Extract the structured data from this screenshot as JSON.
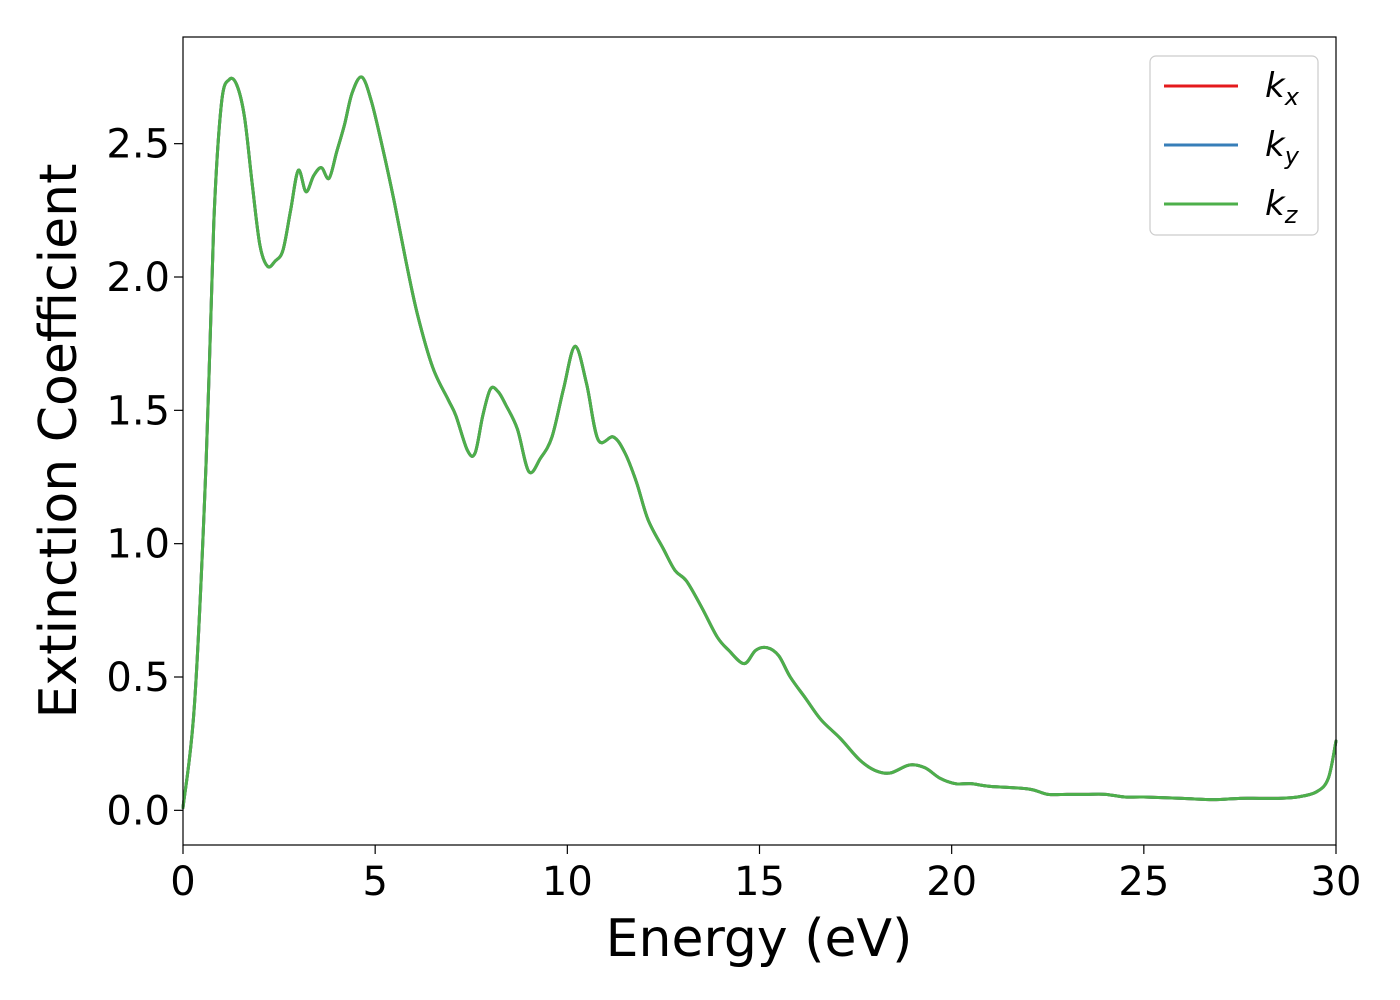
{
  "chart_data": {
    "type": "line",
    "title": "",
    "xlabel": "Energy (eV)",
    "ylabel": "Extinction Coefficient",
    "xlim": [
      0,
      30
    ],
    "ylim": [
      -0.13,
      2.9
    ],
    "xticks": [
      0,
      5,
      10,
      15,
      20,
      25,
      30
    ],
    "xtick_labels": [
      "0",
      "5",
      "10",
      "15",
      "20",
      "25",
      "30"
    ],
    "yticks": [
      0.0,
      0.5,
      1.0,
      1.5,
      2.0,
      2.5
    ],
    "ytick_labels": [
      "0.0",
      "0.5",
      "1.0",
      "1.5",
      "2.0",
      "2.5"
    ],
    "grid": false,
    "legend_position": "top-right",
    "series": [
      {
        "name": "k",
        "subscript": "x",
        "color": "#e41a1c",
        "x": [
          0,
          0.3,
          0.6,
          0.8,
          1.0,
          1.2,
          1.4,
          1.6,
          1.8,
          2.0,
          2.2,
          2.4,
          2.6,
          2.8,
          3.0,
          3.2,
          3.4,
          3.6,
          3.8,
          4.0,
          4.2,
          4.4,
          4.65,
          4.9,
          5.2,
          5.5,
          5.8,
          6.1,
          6.5,
          6.9,
          7.1,
          7.4,
          7.6,
          7.8,
          8.0,
          8.2,
          8.4,
          8.7,
          9.0,
          9.3,
          9.6,
          9.9,
          10.2,
          10.5,
          10.8,
          11.2,
          11.5,
          11.8,
          12.1,
          12.5,
          12.8,
          13.1,
          13.5,
          13.9,
          14.2,
          14.6,
          14.9,
          15.2,
          15.5,
          15.8,
          16.2,
          16.6,
          17.1,
          17.6,
          18.0,
          18.4,
          18.9,
          19.3,
          19.7,
          20.1,
          20.5,
          21.0,
          22.0,
          22.5,
          23.0,
          23.5,
          24.0,
          24.5,
          25.0,
          26.0,
          26.8,
          27.5,
          28.0,
          28.5,
          29.0,
          29.5,
          29.8,
          30.0
        ],
        "y": [
          0.01,
          0.4,
          1.3,
          2.2,
          2.65,
          2.74,
          2.72,
          2.6,
          2.35,
          2.12,
          2.04,
          2.06,
          2.1,
          2.25,
          2.4,
          2.32,
          2.38,
          2.41,
          2.37,
          2.47,
          2.57,
          2.69,
          2.75,
          2.66,
          2.48,
          2.28,
          2.06,
          1.86,
          1.66,
          1.54,
          1.48,
          1.35,
          1.34,
          1.48,
          1.58,
          1.57,
          1.52,
          1.43,
          1.27,
          1.32,
          1.4,
          1.58,
          1.74,
          1.6,
          1.39,
          1.4,
          1.34,
          1.23,
          1.09,
          0.98,
          0.9,
          0.86,
          0.76,
          0.65,
          0.6,
          0.55,
          0.6,
          0.61,
          0.58,
          0.5,
          0.42,
          0.34,
          0.27,
          0.19,
          0.15,
          0.14,
          0.17,
          0.16,
          0.12,
          0.1,
          0.1,
          0.09,
          0.08,
          0.06,
          0.06,
          0.06,
          0.06,
          0.05,
          0.05,
          0.045,
          0.04,
          0.045,
          0.045,
          0.045,
          0.05,
          0.07,
          0.12,
          0.26
        ]
      },
      {
        "name": "k",
        "subscript": "y",
        "color": "#377eb8",
        "x": [
          0,
          0.3,
          0.6,
          0.8,
          1.0,
          1.2,
          1.4,
          1.6,
          1.8,
          2.0,
          2.2,
          2.4,
          2.6,
          2.8,
          3.0,
          3.2,
          3.4,
          3.6,
          3.8,
          4.0,
          4.2,
          4.4,
          4.65,
          4.9,
          5.2,
          5.5,
          5.8,
          6.1,
          6.5,
          6.9,
          7.1,
          7.4,
          7.6,
          7.8,
          8.0,
          8.2,
          8.4,
          8.7,
          9.0,
          9.3,
          9.6,
          9.9,
          10.2,
          10.5,
          10.8,
          11.2,
          11.5,
          11.8,
          12.1,
          12.5,
          12.8,
          13.1,
          13.5,
          13.9,
          14.2,
          14.6,
          14.9,
          15.2,
          15.5,
          15.8,
          16.2,
          16.6,
          17.1,
          17.6,
          18.0,
          18.4,
          18.9,
          19.3,
          19.7,
          20.1,
          20.5,
          21.0,
          22.0,
          22.5,
          23.0,
          23.5,
          24.0,
          24.5,
          25.0,
          26.0,
          26.8,
          27.5,
          28.0,
          28.5,
          29.0,
          29.5,
          29.8,
          30.0
        ],
        "y": [
          0.01,
          0.4,
          1.3,
          2.2,
          2.65,
          2.74,
          2.72,
          2.6,
          2.35,
          2.12,
          2.04,
          2.06,
          2.1,
          2.25,
          2.4,
          2.32,
          2.38,
          2.41,
          2.37,
          2.47,
          2.57,
          2.69,
          2.75,
          2.66,
          2.48,
          2.28,
          2.06,
          1.86,
          1.66,
          1.54,
          1.48,
          1.35,
          1.34,
          1.48,
          1.58,
          1.57,
          1.52,
          1.43,
          1.27,
          1.32,
          1.4,
          1.58,
          1.74,
          1.6,
          1.39,
          1.4,
          1.34,
          1.23,
          1.09,
          0.98,
          0.9,
          0.86,
          0.76,
          0.65,
          0.6,
          0.55,
          0.6,
          0.61,
          0.58,
          0.5,
          0.42,
          0.34,
          0.27,
          0.19,
          0.15,
          0.14,
          0.17,
          0.16,
          0.12,
          0.1,
          0.1,
          0.09,
          0.08,
          0.06,
          0.06,
          0.06,
          0.06,
          0.05,
          0.05,
          0.045,
          0.04,
          0.045,
          0.045,
          0.045,
          0.05,
          0.07,
          0.12,
          0.26
        ]
      },
      {
        "name": "k",
        "subscript": "z",
        "color": "#4daf4a",
        "x": [
          0,
          0.3,
          0.6,
          0.8,
          1.0,
          1.2,
          1.4,
          1.6,
          1.8,
          2.0,
          2.2,
          2.4,
          2.6,
          2.8,
          3.0,
          3.2,
          3.4,
          3.6,
          3.8,
          4.0,
          4.2,
          4.4,
          4.65,
          4.9,
          5.2,
          5.5,
          5.8,
          6.1,
          6.5,
          6.9,
          7.1,
          7.4,
          7.6,
          7.8,
          8.0,
          8.2,
          8.4,
          8.7,
          9.0,
          9.3,
          9.6,
          9.9,
          10.2,
          10.5,
          10.8,
          11.2,
          11.5,
          11.8,
          12.1,
          12.5,
          12.8,
          13.1,
          13.5,
          13.9,
          14.2,
          14.6,
          14.9,
          15.2,
          15.5,
          15.8,
          16.2,
          16.6,
          17.1,
          17.6,
          18.0,
          18.4,
          18.9,
          19.3,
          19.7,
          20.1,
          20.5,
          21.0,
          22.0,
          22.5,
          23.0,
          23.5,
          24.0,
          24.5,
          25.0,
          26.0,
          26.8,
          27.5,
          28.0,
          28.5,
          29.0,
          29.5,
          29.8,
          30.0
        ],
        "y": [
          0.01,
          0.4,
          1.3,
          2.2,
          2.65,
          2.74,
          2.72,
          2.6,
          2.35,
          2.12,
          2.04,
          2.06,
          2.1,
          2.25,
          2.4,
          2.32,
          2.38,
          2.41,
          2.37,
          2.47,
          2.57,
          2.69,
          2.75,
          2.66,
          2.48,
          2.28,
          2.06,
          1.86,
          1.66,
          1.54,
          1.48,
          1.35,
          1.34,
          1.48,
          1.58,
          1.57,
          1.52,
          1.43,
          1.27,
          1.32,
          1.4,
          1.58,
          1.74,
          1.6,
          1.39,
          1.4,
          1.34,
          1.23,
          1.09,
          0.98,
          0.9,
          0.86,
          0.76,
          0.65,
          0.6,
          0.55,
          0.6,
          0.61,
          0.58,
          0.5,
          0.42,
          0.34,
          0.27,
          0.19,
          0.15,
          0.14,
          0.17,
          0.16,
          0.12,
          0.1,
          0.1,
          0.09,
          0.08,
          0.06,
          0.06,
          0.06,
          0.06,
          0.05,
          0.05,
          0.045,
          0.04,
          0.045,
          0.045,
          0.045,
          0.05,
          0.07,
          0.12,
          0.26
        ]
      }
    ]
  }
}
